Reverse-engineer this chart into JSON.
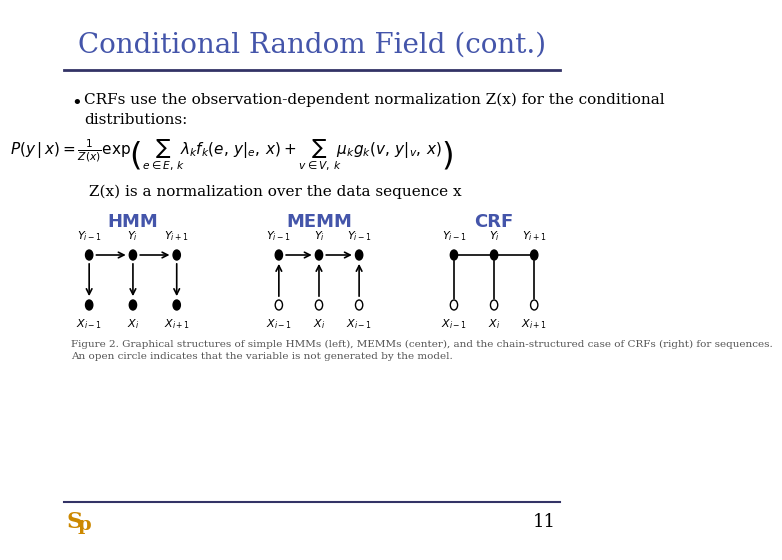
{
  "title": "Conditional Random Field (cont.)",
  "title_color": "#4455aa",
  "title_fontsize": 20,
  "bg_color": "#ffffff",
  "bullet_text": "CRFs use the observation-dependent normalization Z(x) for the conditional\ndistributions:",
  "normalization_text": "Z(x) is a normalization over the data sequence x",
  "hmm_label": "HMM",
  "memm_label": "MEMM",
  "crf_label": "CRF",
  "label_color": "#4455aa",
  "node_color": "#000000",
  "line_color": "#555555",
  "caption_text": "Figure 2. Graphical structures of simple HMMs (left), MEMMs (center), and the chain-structured case of CRFs (right) for sequences.\nAn open circle indicates that the variable is not generated by the model.",
  "page_number": "11",
  "separator_color": "#333366"
}
